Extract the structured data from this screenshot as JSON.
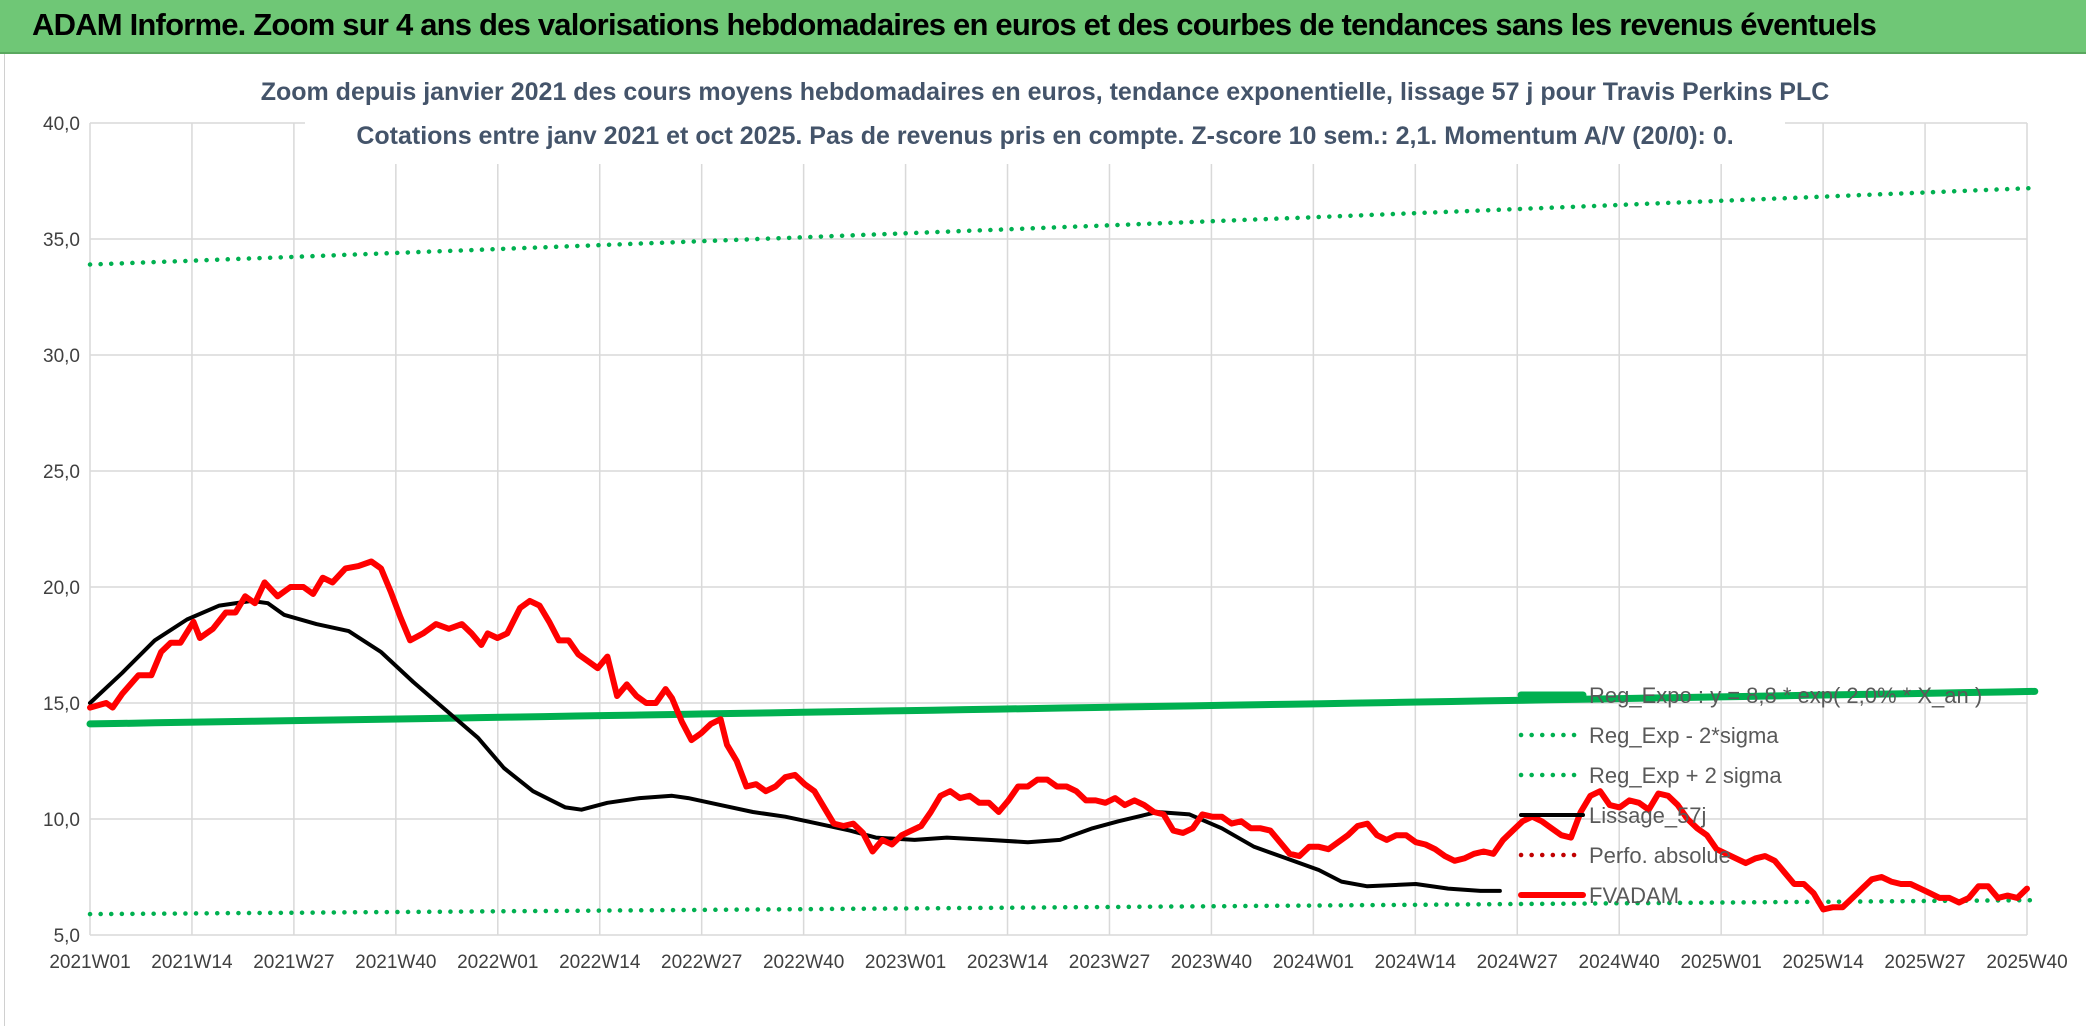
{
  "banner": {
    "title": "ADAM Informe. Zoom sur 4 ans des valorisations hebdomadaires en euros et des courbes de tendances sans les revenus éventuels"
  },
  "colors": {
    "banner_bg": "#6fc776",
    "regression": "#00b050",
    "price": "#ff0000",
    "smoothing": "#000000",
    "axis_text": "#404040",
    "grid": "#d9d9d9",
    "title_text": "#44546a"
  },
  "chart_data": {
    "type": "line",
    "title_line1": "Zoom depuis janvier 2021 des cours moyens hebdomadaires en euros, tendance exponentielle, lissage 57 j pour Travis Perkins PLC",
    "title_line2": "Cotations entre janv 2021 et oct 2025. Pas de revenus pris en compte. Z-score 10 sem.: 2,1. Momentum A/V (20/0): 0.",
    "ylim": [
      5,
      40
    ],
    "y_ticks": [
      "5,0",
      "10,0",
      "15,0",
      "20,0",
      "25,0",
      "30,0",
      "35,0",
      "40,0"
    ],
    "x_tick_labels": [
      "2021W01",
      "2021W14",
      "2021W27",
      "2021W40",
      "2022W01",
      "2022W14",
      "2022W27",
      "2022W40",
      "2023W01",
      "2023W14",
      "2023W27",
      "2023W40",
      "2024W01",
      "2024W14",
      "2024W27",
      "2024W40",
      "2025W01",
      "2025W14",
      "2025W27",
      "2025W40"
    ],
    "n_weeks": 248,
    "legend_position": "right-middle",
    "series": [
      {
        "name": "Reg_Expo : y = 8,8 * exp( 2,0% * X_an )",
        "style": "solid-thick",
        "color": "#00b050",
        "start": 14.1,
        "end": 15.5
      },
      {
        "name": "Reg_Exp - 2*sigma",
        "style": "dotted",
        "color": "#00b050",
        "start": 5.9,
        "end": 6.5
      },
      {
        "name": "Reg_Exp + 2 sigma",
        "style": "dotted",
        "color": "#00b050",
        "start": 33.9,
        "end": 37.2
      },
      {
        "name": "Lissage_57j",
        "style": "solid",
        "color": "#000000",
        "points": [
          [
            0,
            15.0
          ],
          [
            10,
            16.3
          ],
          [
            20,
            17.7
          ],
          [
            30,
            18.6
          ],
          [
            40,
            19.2
          ],
          [
            50,
            19.4
          ],
          [
            55,
            19.3
          ],
          [
            60,
            18.8
          ],
          [
            70,
            18.4
          ],
          [
            80,
            18.1
          ],
          [
            90,
            17.2
          ],
          [
            100,
            15.9
          ],
          [
            110,
            14.7
          ],
          [
            120,
            13.5
          ],
          [
            128,
            12.2
          ],
          [
            137,
            11.2
          ],
          [
            147,
            10.5
          ],
          [
            152,
            10.4
          ],
          [
            160,
            10.7
          ],
          [
            170,
            10.9
          ],
          [
            180,
            11.0
          ],
          [
            185,
            10.9
          ],
          [
            195,
            10.6
          ],
          [
            205,
            10.3
          ],
          [
            215,
            10.1
          ],
          [
            225,
            9.8
          ],
          [
            235,
            9.5
          ],
          [
            243,
            9.2
          ],
          [
            255,
            9.1
          ],
          [
            265,
            9.2
          ],
          [
            278,
            9.1
          ],
          [
            290,
            9.0
          ],
          [
            300,
            9.1
          ],
          [
            310,
            9.6
          ],
          [
            318,
            9.9
          ],
          [
            330,
            10.3
          ],
          [
            340,
            10.2
          ],
          [
            350,
            9.6
          ],
          [
            360,
            8.8
          ],
          [
            370,
            8.3
          ],
          [
            380,
            7.8
          ],
          [
            387,
            7.3
          ],
          [
            395,
            7.1
          ],
          [
            410,
            7.2
          ],
          [
            420,
            7.0
          ],
          [
            430,
            6.9
          ],
          [
            436,
            6.9
          ]
        ]
      },
      {
        "name": "Perfo. absolue",
        "style": "dotted",
        "color": "#c00000",
        "points": []
      },
      {
        "name": "FVADAM",
        "style": "solid-thick",
        "color": "#ff0000",
        "points": [
          [
            0,
            14.8
          ],
          [
            5,
            15.0
          ],
          [
            7,
            14.8
          ],
          [
            10,
            15.4
          ],
          [
            15,
            16.2
          ],
          [
            19,
            16.2
          ],
          [
            22,
            17.2
          ],
          [
            25,
            17.6
          ],
          [
            28,
            17.6
          ],
          [
            32,
            18.5
          ],
          [
            34,
            17.8
          ],
          [
            38,
            18.2
          ],
          [
            42,
            18.9
          ],
          [
            45,
            18.9
          ],
          [
            48,
            19.6
          ],
          [
            51,
            19.3
          ],
          [
            54,
            20.2
          ],
          [
            58,
            19.6
          ],
          [
            62,
            20.0
          ],
          [
            66,
            20.0
          ],
          [
            69,
            19.7
          ],
          [
            72,
            20.4
          ],
          [
            75,
            20.2
          ],
          [
            79,
            20.8
          ],
          [
            83,
            20.9
          ],
          [
            87,
            21.1
          ],
          [
            90,
            20.8
          ],
          [
            93,
            19.8
          ],
          [
            96,
            18.7
          ],
          [
            99,
            17.7
          ],
          [
            103,
            18.0
          ],
          [
            107,
            18.4
          ],
          [
            111,
            18.2
          ],
          [
            115,
            18.4
          ],
          [
            118,
            18.0
          ],
          [
            121,
            17.5
          ],
          [
            123,
            18.0
          ],
          [
            126,
            17.8
          ],
          [
            129,
            18.0
          ],
          [
            133,
            19.1
          ],
          [
            136,
            19.4
          ],
          [
            139,
            19.2
          ],
          [
            142,
            18.5
          ],
          [
            145,
            17.7
          ],
          [
            148,
            17.7
          ],
          [
            151,
            17.1
          ],
          [
            154,
            16.8
          ],
          [
            157,
            16.5
          ],
          [
            160,
            17.0
          ],
          [
            163,
            15.3
          ],
          [
            166,
            15.8
          ],
          [
            169,
            15.3
          ],
          [
            172,
            15.0
          ],
          [
            175,
            15.0
          ],
          [
            178,
            15.6
          ],
          [
            180,
            15.2
          ],
          [
            183,
            14.2
          ],
          [
            186,
            13.4
          ],
          [
            189,
            13.7
          ],
          [
            192,
            14.1
          ],
          [
            195,
            14.3
          ],
          [
            197,
            13.2
          ],
          [
            200,
            12.5
          ],
          [
            203,
            11.4
          ],
          [
            206,
            11.5
          ],
          [
            209,
            11.2
          ],
          [
            212,
            11.4
          ],
          [
            215,
            11.8
          ],
          [
            218,
            11.9
          ],
          [
            221,
            11.5
          ],
          [
            224,
            11.2
          ],
          [
            227,
            10.5
          ],
          [
            230,
            9.8
          ],
          [
            233,
            9.7
          ],
          [
            236,
            9.8
          ],
          [
            239,
            9.4
          ],
          [
            242,
            8.6
          ],
          [
            245,
            9.1
          ],
          [
            248,
            8.9
          ],
          [
            251,
            9.3
          ],
          [
            254,
            9.5
          ],
          [
            257,
            9.7
          ],
          [
            260,
            10.3
          ],
          [
            263,
            11.0
          ],
          [
            266,
            11.2
          ],
          [
            269,
            10.9
          ],
          [
            272,
            11.0
          ],
          [
            275,
            10.7
          ],
          [
            278,
            10.7
          ],
          [
            281,
            10.3
          ],
          [
            284,
            10.8
          ],
          [
            287,
            11.4
          ],
          [
            290,
            11.4
          ],
          [
            293,
            11.7
          ],
          [
            296,
            11.7
          ],
          [
            299,
            11.4
          ],
          [
            302,
            11.4
          ],
          [
            305,
            11.2
          ],
          [
            308,
            10.8
          ],
          [
            311,
            10.8
          ],
          [
            314,
            10.7
          ],
          [
            317,
            10.9
          ],
          [
            320,
            10.6
          ],
          [
            323,
            10.8
          ],
          [
            326,
            10.6
          ],
          [
            329,
            10.3
          ],
          [
            332,
            10.2
          ],
          [
            335,
            9.5
          ],
          [
            338,
            9.4
          ],
          [
            341,
            9.6
          ],
          [
            344,
            10.2
          ],
          [
            347,
            10.1
          ],
          [
            350,
            10.1
          ],
          [
            353,
            9.8
          ],
          [
            356,
            9.9
          ],
          [
            359,
            9.6
          ],
          [
            362,
            9.6
          ],
          [
            365,
            9.5
          ],
          [
            368,
            9.0
          ],
          [
            371,
            8.5
          ],
          [
            374,
            8.4
          ],
          [
            377,
            8.8
          ],
          [
            380,
            8.8
          ],
          [
            383,
            8.7
          ],
          [
            386,
            9.0
          ],
          [
            389,
            9.3
          ],
          [
            392,
            9.7
          ],
          [
            395,
            9.8
          ],
          [
            398,
            9.3
          ],
          [
            401,
            9.1
          ],
          [
            404,
            9.3
          ],
          [
            407,
            9.3
          ],
          [
            410,
            9.0
          ],
          [
            413,
            8.9
          ],
          [
            416,
            8.7
          ],
          [
            419,
            8.4
          ],
          [
            422,
            8.2
          ],
          [
            425,
            8.3
          ],
          [
            428,
            8.5
          ],
          [
            431,
            8.6
          ],
          [
            434,
            8.5
          ],
          [
            437,
            9.1
          ],
          [
            440,
            9.5
          ],
          [
            443,
            9.9
          ],
          [
            446,
            10.1
          ],
          [
            449,
            9.9
          ],
          [
            452,
            9.6
          ],
          [
            455,
            9.3
          ],
          [
            458,
            9.2
          ],
          [
            461,
            10.3
          ],
          [
            464,
            11.0
          ],
          [
            467,
            11.2
          ],
          [
            470,
            10.6
          ],
          [
            473,
            10.5
          ],
          [
            476,
            10.8
          ],
          [
            479,
            10.7
          ],
          [
            482,
            10.4
          ],
          [
            485,
            11.1
          ],
          [
            488,
            11.0
          ],
          [
            491,
            10.6
          ],
          [
            494,
            10.0
          ],
          [
            497,
            9.6
          ],
          [
            500,
            9.3
          ],
          [
            503,
            8.7
          ],
          [
            506,
            8.5
          ],
          [
            509,
            8.3
          ],
          [
            512,
            8.1
          ],
          [
            515,
            8.3
          ],
          [
            518,
            8.4
          ],
          [
            521,
            8.2
          ],
          [
            524,
            7.7
          ],
          [
            527,
            7.2
          ],
          [
            530,
            7.2
          ],
          [
            533,
            6.8
          ],
          [
            536,
            6.1
          ],
          [
            539,
            6.2
          ],
          [
            542,
            6.2
          ],
          [
            545,
            6.6
          ],
          [
            548,
            7.0
          ],
          [
            551,
            7.4
          ],
          [
            554,
            7.5
          ],
          [
            557,
            7.3
          ],
          [
            560,
            7.2
          ],
          [
            563,
            7.2
          ],
          [
            566,
            7.0
          ],
          [
            569,
            6.8
          ],
          [
            572,
            6.6
          ],
          [
            575,
            6.6
          ],
          [
            578,
            6.4
          ],
          [
            581,
            6.6
          ],
          [
            584,
            7.1
          ],
          [
            587,
            7.1
          ],
          [
            590,
            6.6
          ],
          [
            593,
            6.7
          ],
          [
            596,
            6.6
          ],
          [
            599,
            7.0
          ]
        ]
      }
    ]
  }
}
